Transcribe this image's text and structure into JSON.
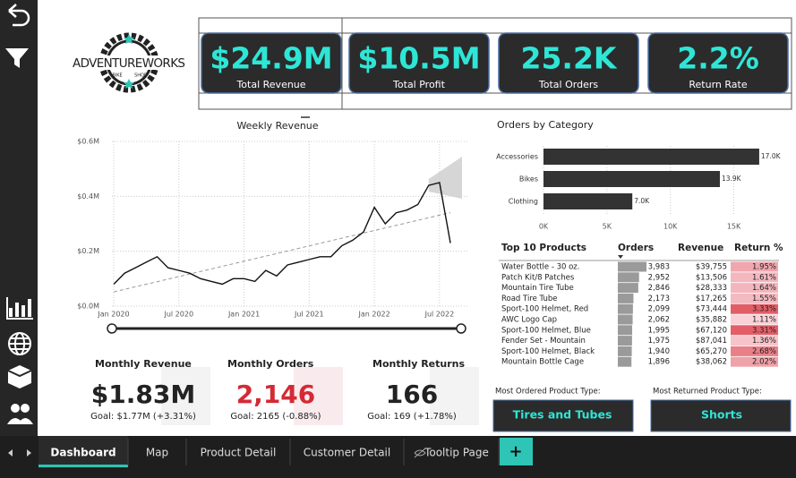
{
  "logo": {
    "name": "ADVENTUREWORKS",
    "badge": [
      "BIKE",
      "SHOP"
    ]
  },
  "kpis": [
    {
      "value": "$24.9M",
      "label": "Total Revenue"
    },
    {
      "value": "$10.5M",
      "label": "Total Profit"
    },
    {
      "value": "25.2K",
      "label": "Total Orders"
    },
    {
      "value": "2.2%",
      "label": "Return Rate"
    }
  ],
  "weekly_revenue": {
    "type": "line",
    "title": "Weekly Revenue",
    "categories": [
      "Jan 2020",
      null,
      null,
      null,
      null,
      null,
      "Jul 2020",
      null,
      null,
      null,
      null,
      null,
      "Jan 2021",
      null,
      null,
      null,
      null,
      null,
      "Jul 2021",
      null,
      null,
      null,
      null,
      null,
      "Jan 2022",
      null,
      null,
      null,
      null,
      null,
      "Jul 2022",
      null
    ],
    "values": [
      0.08,
      0.12,
      0.14,
      0.16,
      0.18,
      0.14,
      0.13,
      0.12,
      0.1,
      0.09,
      0.08,
      0.1,
      0.1,
      0.09,
      0.13,
      0.11,
      0.15,
      0.16,
      0.17,
      0.18,
      0.18,
      0.22,
      0.24,
      0.27,
      0.36,
      0.3,
      0.34,
      0.35,
      0.37,
      0.44,
      0.45,
      0.23
    ],
    "color": "#111111",
    "ylim": [
      0,
      0.6
    ],
    "yticks": [
      {
        "value": 0,
        "label": "$0.0M"
      },
      {
        "value": 0.2,
        "label": "$0.2M"
      },
      {
        "value": 0.4,
        "label": "$0.4M"
      },
      {
        "value": 0.6,
        "label": "$0.6M"
      }
    ],
    "grid": true
  },
  "orders_by_category": {
    "type": "bar",
    "orientation": "horizontal",
    "title": "Orders by Category",
    "categories": [
      "Accessories",
      "Bikes",
      "Clothing"
    ],
    "values": [
      17000,
      13900,
      7000
    ],
    "value_labels": [
      "17.0K",
      "13.9K",
      "7.0K"
    ],
    "color": "#333333",
    "xlim": [
      0,
      17500
    ],
    "xticks": [
      {
        "value": 0,
        "label": "0K"
      },
      {
        "value": 5000,
        "label": "5K"
      },
      {
        "value": 10000,
        "label": "10K"
      },
      {
        "value": 15000,
        "label": "15K"
      }
    ]
  },
  "top_products": {
    "columns": [
      "Top 10 Products",
      "Orders",
      "Revenue",
      "Return %"
    ],
    "rows": [
      {
        "product": "Water Bottle - 30 oz.",
        "orders": 3983,
        "orders_label": "3,983",
        "revenue": "$39,755",
        "return_pct": 1.95,
        "return_label": "1.95%"
      },
      {
        "product": "Patch Kit/8 Patches",
        "orders": 2952,
        "orders_label": "2,952",
        "revenue": "$13,506",
        "return_pct": 1.61,
        "return_label": "1.61%"
      },
      {
        "product": "Mountain Tire Tube",
        "orders": 2846,
        "orders_label": "2,846",
        "revenue": "$28,333",
        "return_pct": 1.64,
        "return_label": "1.64%"
      },
      {
        "product": "Road Tire Tube",
        "orders": 2173,
        "orders_label": "2,173",
        "revenue": "$17,265",
        "return_pct": 1.55,
        "return_label": "1.55%"
      },
      {
        "product": "Sport-100 Helmet, Red",
        "orders": 2099,
        "orders_label": "2,099",
        "revenue": "$73,444",
        "return_pct": 3.33,
        "return_label": "3.33%"
      },
      {
        "product": "AWC Logo Cap",
        "orders": 2062,
        "orders_label": "2,062",
        "revenue": "$35,882",
        "return_pct": 1.11,
        "return_label": "1.11%"
      },
      {
        "product": "Sport-100 Helmet, Blue",
        "orders": 1995,
        "orders_label": "1,995",
        "revenue": "$67,120",
        "return_pct": 3.31,
        "return_label": "3.31%"
      },
      {
        "product": "Fender Set - Mountain",
        "orders": 1975,
        "orders_label": "1,975",
        "revenue": "$87,041",
        "return_pct": 1.36,
        "return_label": "1.36%"
      },
      {
        "product": "Sport-100 Helmet, Black",
        "orders": 1940,
        "orders_label": "1,940",
        "revenue": "$65,270",
        "return_pct": 2.68,
        "return_label": "2.68%"
      },
      {
        "product": "Mountain Bottle Cage",
        "orders": 1896,
        "orders_label": "1,896",
        "revenue": "$38,062",
        "return_pct": 2.02,
        "return_label": "2.02%"
      }
    ]
  },
  "monthly_cards": [
    {
      "title": "Monthly Revenue",
      "value": "$1.83M",
      "goal": "Goal: $1.77M (+3.31%)"
    },
    {
      "title": "Monthly Orders",
      "value": "2,146",
      "goal": "Goal: 2165 (-0.88%)"
    },
    {
      "title": "Monthly Returns",
      "value": "166",
      "goal": "Goal: 169 (+1.78%)"
    }
  ],
  "product_types": [
    {
      "label": "Most Ordered Product Type:",
      "value": "Tires and Tubes"
    },
    {
      "label": "Most Returned Product Type:",
      "value": "Shorts"
    }
  ],
  "tabs": [
    "Dashboard",
    "Map",
    "Product Detail",
    "Customer Detail",
    "Tooltip Page"
  ],
  "add_tab": "+"
}
